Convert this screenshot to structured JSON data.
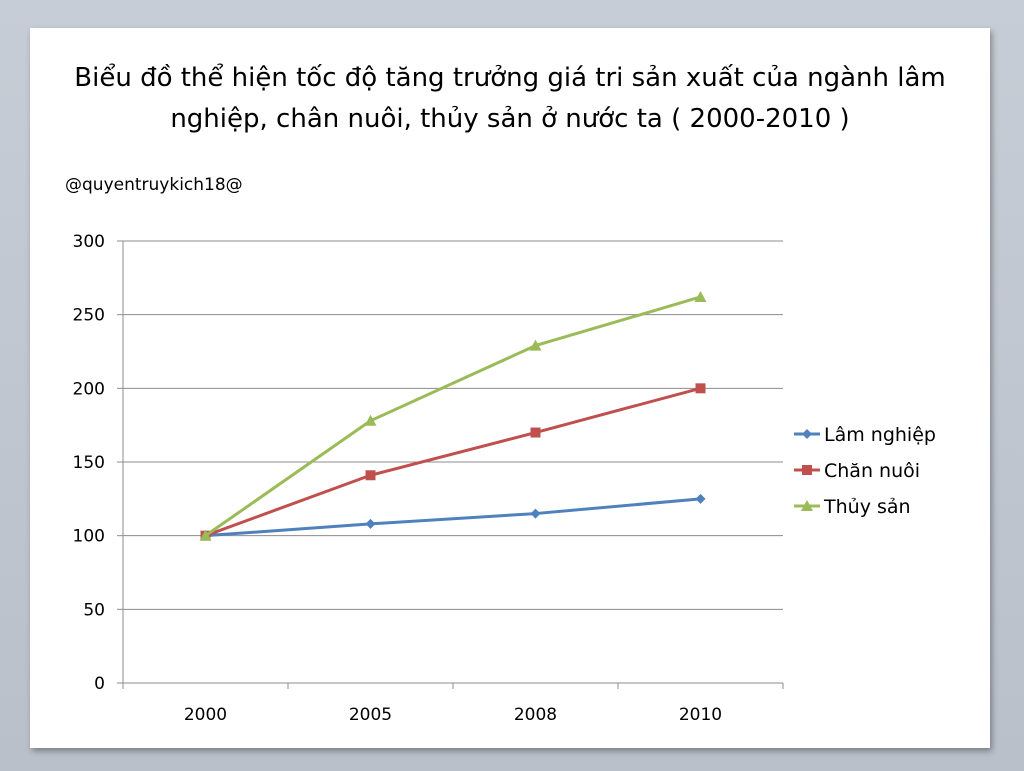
{
  "chart_data": {
    "type": "line",
    "title_line1": "Biểu đồ thể hiện tốc độ tăng trưởng giá tri sản xuất của ngành lâm",
    "title_line2": "nghiệp, chân nuôi, thủy sản ở nước ta ( 2000-2010 )",
    "watermark": "@quyentruykich18@",
    "categories": [
      "2000",
      "2005",
      "2008",
      "2010"
    ],
    "ylim": [
      0,
      300
    ],
    "yticks": [
      0,
      50,
      100,
      150,
      200,
      250,
      300
    ],
    "grid": true,
    "legend_position": "right",
    "series": [
      {
        "name": "Lâm nghiệp",
        "values": [
          100,
          108,
          115,
          125
        ],
        "color": "#4f81bd",
        "marker": "diamond"
      },
      {
        "name": "Chăn nuôi",
        "values": [
          100,
          141,
          170,
          200
        ],
        "color": "#c0504d",
        "marker": "square"
      },
      {
        "name": "Thủy sản",
        "values": [
          100,
          178,
          229,
          262
        ],
        "color": "#9bbb59",
        "marker": "triangle"
      }
    ]
  }
}
